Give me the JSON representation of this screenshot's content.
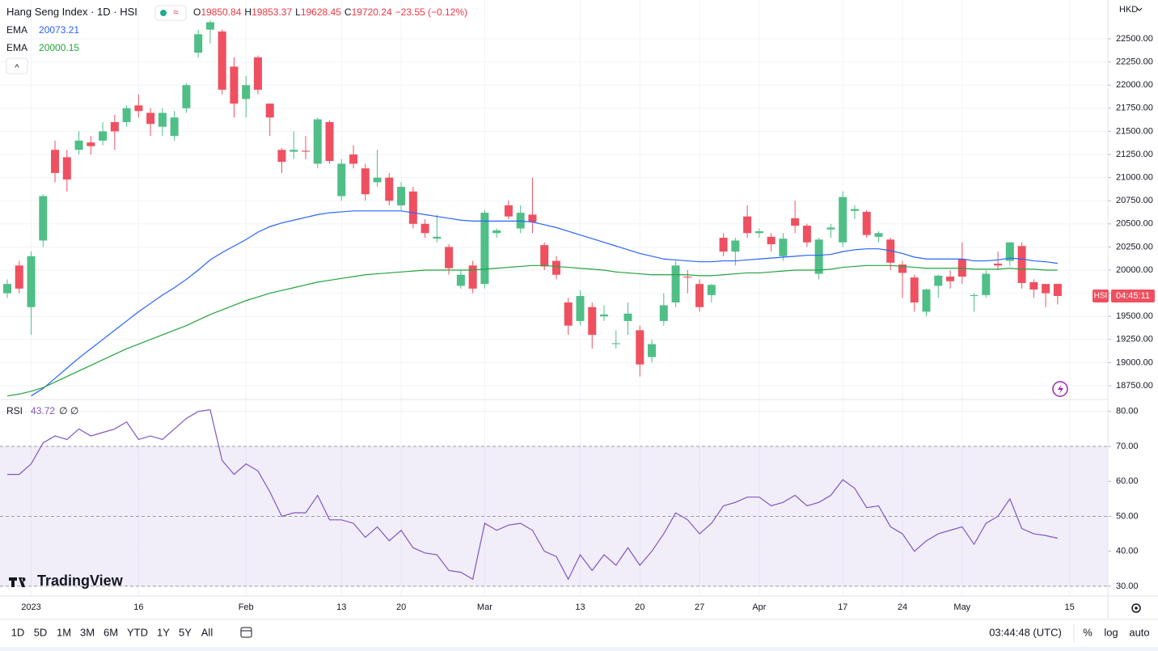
{
  "header": {
    "title": "Hang Seng Index · 1D · HSI",
    "o_label": "O",
    "h_label": "H",
    "l_label": "L",
    "c_label": "C",
    "change": "−23.55 (−0.12%)",
    "currency": "HKD",
    "symbol_badge": "HSI",
    "countdown": "04:45:11",
    "collapse": "^"
  },
  "logo": "TradingView",
  "toolbar": {
    "ranges": [
      "1D",
      "5D",
      "1M",
      "3M",
      "6M",
      "YTD",
      "1Y",
      "5Y",
      "All"
    ],
    "clock": "03:44:48 (UTC)",
    "scale_options": [
      "%",
      "log",
      "auto"
    ]
  },
  "chart_data": [
    {
      "type": "candlestick",
      "title": "Hang Seng Index",
      "categories": [
        null,
        null,
        "2023",
        null,
        null,
        null,
        null,
        null,
        null,
        null,
        null,
        "16",
        null,
        null,
        null,
        null,
        null,
        null,
        null,
        null,
        "Feb",
        null,
        null,
        null,
        null,
        null,
        null,
        null,
        "13",
        null,
        null,
        null,
        null,
        "20",
        null,
        null,
        null,
        null,
        null,
        null,
        "Mar",
        null,
        null,
        null,
        null,
        null,
        null,
        null,
        "13",
        null,
        null,
        null,
        null,
        "20",
        null,
        null,
        null,
        null,
        "27",
        null,
        null,
        null,
        null,
        "Apr",
        null,
        null,
        null,
        null,
        null,
        null,
        "17",
        null,
        null,
        null,
        null,
        "24",
        null,
        null,
        null,
        null,
        "May",
        null,
        null,
        null,
        null,
        null,
        null,
        null,
        null,
        "15"
      ],
      "open": [
        19750,
        20050,
        19600,
        20320,
        21300,
        21220,
        21300,
        21380,
        21400,
        21600,
        21600,
        21780,
        21700,
        21550,
        21450,
        21750,
        22350,
        22600,
        22580,
        22200,
        21850,
        22300,
        21800,
        21300,
        21280,
        21290,
        21150,
        21600,
        20800,
        21250,
        21100,
        20950,
        21000,
        20700,
        20850,
        20500,
        20340,
        20250,
        19830,
        20050,
        19850,
        20400,
        20700,
        20450,
        20600,
        20270,
        20100,
        19650,
        19450,
        19600,
        19500,
        19200,
        19450,
        19350,
        19060,
        19450,
        19650,
        19930,
        19850,
        19730,
        20350,
        20200,
        20580,
        20400,
        20360,
        20150,
        20560,
        20480,
        19960,
        20440,
        20300,
        20640,
        20630,
        20360,
        20330,
        20060,
        19920,
        19550,
        19830,
        19930,
        20120,
        19720,
        19730,
        20070,
        20100,
        20260,
        19870,
        19850,
        19850.84,
        null
      ],
      "high": [
        19900,
        20100,
        20200,
        20820,
        21400,
        21300,
        21500,
        21450,
        21600,
        21680,
        21780,
        21900,
        21750,
        21750,
        21720,
        22020,
        22600,
        22700,
        22600,
        22300,
        22100,
        22320,
        21800,
        21320,
        21500,
        21450,
        21650,
        21620,
        21200,
        21350,
        21150,
        21300,
        21050,
        20950,
        20900,
        20550,
        20600,
        20280,
        20000,
        20100,
        20650,
        20450,
        20750,
        20700,
        21000,
        20300,
        20150,
        19700,
        19780,
        19650,
        19620,
        19350,
        19650,
        19400,
        19250,
        19750,
        20100,
        20000,
        19900,
        19850,
        20400,
        20350,
        20700,
        20450,
        20400,
        20400,
        20750,
        20500,
        20350,
        20500,
        20850,
        20700,
        20650,
        20420,
        20350,
        20100,
        19950,
        19800,
        19950,
        20000,
        20300,
        19750,
        20000,
        20200,
        20300,
        20300,
        19900,
        19850,
        19853.37,
        null
      ],
      "low": [
        19700,
        19750,
        19300,
        20250,
        20950,
        20850,
        21250,
        21250,
        21350,
        21300,
        21550,
        21650,
        21450,
        21450,
        21400,
        21700,
        22300,
        22450,
        21900,
        21650,
        21650,
        21900,
        21450,
        21050,
        21200,
        21200,
        21100,
        21150,
        20750,
        21100,
        20750,
        20900,
        20700,
        20650,
        20450,
        20350,
        20300,
        19950,
        19800,
        19750,
        19800,
        20350,
        20550,
        20400,
        20400,
        20000,
        19900,
        19300,
        19400,
        19150,
        19450,
        19150,
        19300,
        18850,
        19000,
        19400,
        19600,
        19750,
        19550,
        19650,
        20150,
        20050,
        20350,
        20350,
        20200,
        20100,
        20400,
        20250,
        19900,
        20350,
        20250,
        20550,
        20350,
        20300,
        20000,
        19700,
        19550,
        19500,
        19700,
        19800,
        19850,
        19550,
        19700,
        20000,
        20050,
        19800,
        19700,
        19600,
        19628.45,
        null
      ],
      "close": [
        19850,
        19800,
        20150,
        20800,
        21050,
        20980,
        21400,
        21340,
        21500,
        21500,
        21750,
        21720,
        21580,
        21700,
        21650,
        22000,
        22550,
        22680,
        21950,
        21800,
        22000,
        21950,
        21650,
        21170,
        21300,
        21280,
        21630,
        21180,
        21150,
        21150,
        20820,
        21000,
        20750,
        20900,
        20500,
        20400,
        20360,
        20020,
        19950,
        19800,
        20620,
        20430,
        20580,
        20620,
        20520,
        20040,
        19950,
        19400,
        19720,
        19300,
        19520,
        19210,
        19530,
        18980,
        19200,
        19620,
        20050,
        19920,
        19600,
        19840,
        20200,
        20320,
        20400,
        20420,
        20280,
        20340,
        20480,
        20300,
        20330,
        20460,
        20790,
        20660,
        20380,
        20400,
        20080,
        19970,
        19650,
        19790,
        19940,
        19880,
        19930,
        19730,
        19960,
        20050,
        20300,
        19860,
        19790,
        19750,
        19720.24,
        null
      ],
      "up_color": "#4fbf87",
      "down_color": "#ef5060",
      "series": [
        {
          "name": "EMA",
          "color": "#2962ff",
          "values": [
            null,
            null,
            18640,
            18720,
            18830,
            18940,
            19050,
            19150,
            19250,
            19350,
            19450,
            19550,
            19640,
            19730,
            19810,
            19900,
            20000,
            20110,
            20190,
            20260,
            20330,
            20410,
            20470,
            20510,
            20540,
            20570,
            20600,
            20620,
            20630,
            20640,
            20640,
            20640,
            20640,
            20640,
            20620,
            20600,
            20580,
            20560,
            20540,
            20530,
            20530,
            20530,
            20530,
            20530,
            20520,
            20490,
            20460,
            20420,
            20380,
            20340,
            20300,
            20260,
            20220,
            20180,
            20150,
            20120,
            20110,
            20100,
            20090,
            20090,
            20100,
            20100,
            20110,
            20120,
            20130,
            20140,
            20150,
            20160,
            20160,
            20170,
            20200,
            20220,
            20230,
            20230,
            20210,
            20180,
            20140,
            20120,
            20120,
            20120,
            20120,
            20100,
            20100,
            20110,
            20130,
            20120,
            20100,
            20090,
            20073.21,
            null
          ]
        },
        {
          "name": "EMA",
          "color": "#22a33a",
          "values": [
            18640,
            18660,
            18690,
            18730,
            18790,
            18850,
            18910,
            18970,
            19030,
            19090,
            19150,
            19200,
            19250,
            19300,
            19350,
            19400,
            19460,
            19520,
            19570,
            19620,
            19670,
            19710,
            19750,
            19780,
            19810,
            19840,
            19870,
            19890,
            19910,
            19930,
            19950,
            19960,
            19970,
            19980,
            19990,
            20000,
            20000,
            20000,
            20000,
            20000,
            20010,
            20020,
            20030,
            20040,
            20050,
            20050,
            20040,
            20030,
            20020,
            20010,
            20000,
            19980,
            19970,
            19960,
            19950,
            19950,
            19950,
            19950,
            19940,
            19940,
            19950,
            19960,
            19970,
            19970,
            19980,
            19990,
            20000,
            20000,
            20000,
            20010,
            20030,
            20040,
            20050,
            20050,
            20050,
            20040,
            20030,
            20020,
            20020,
            20020,
            20020,
            20010,
            20010,
            20010,
            20020,
            20010,
            20010,
            20000,
            20000.15,
            null
          ]
        }
      ],
      "ylim": [
        18610,
        22920
      ],
      "yticks": [
        {
          "value": 18750,
          "label": "18750.00"
        },
        {
          "value": 19000,
          "label": "19000.00"
        },
        {
          "value": 19250,
          "label": "19250.00"
        },
        {
          "value": 19500,
          "label": "19500.00"
        },
        {
          "value": 19750,
          "label": "19750.00"
        },
        {
          "value": 20000,
          "label": "20000.00"
        },
        {
          "value": 20250,
          "label": "20250.00"
        },
        {
          "value": 20500,
          "label": "20500.00"
        },
        {
          "value": 20750,
          "label": "20750.00"
        },
        {
          "value": 21000,
          "label": "21000.00"
        },
        {
          "value": 21250,
          "label": "21250.00"
        },
        {
          "value": 21500,
          "label": "21500.00"
        },
        {
          "value": 21750,
          "label": "21750.00"
        },
        {
          "value": 22000,
          "label": "22000.00"
        },
        {
          "value": 22250,
          "label": "22250.00"
        },
        {
          "value": 22500,
          "label": "22500.00"
        }
      ],
      "grid": true
    },
    {
      "type": "line",
      "extra": "∅ ∅",
      "series": [
        {
          "name": "RSI",
          "color": "#7e57c2",
          "values": [
            62,
            62,
            65,
            71,
            73,
            72,
            75,
            73,
            74,
            75,
            77,
            72,
            73,
            72,
            75,
            78,
            80,
            80.5,
            66,
            62,
            65,
            63,
            57,
            50,
            51,
            51,
            56,
            49,
            49,
            48,
            44,
            47,
            43,
            46,
            41,
            39.5,
            39,
            34.5,
            34,
            32,
            48,
            46,
            47.5,
            48,
            46,
            40,
            38.5,
            32,
            39,
            34.5,
            39,
            36,
            41,
            36,
            40,
            45,
            51,
            49,
            45,
            48,
            53,
            54,
            55.5,
            55.5,
            53,
            54,
            56,
            53,
            54,
            56,
            60.5,
            58,
            52.5,
            53,
            47,
            45,
            40,
            43,
            45,
            46,
            47,
            42,
            48,
            50,
            55,
            46.5,
            45,
            44.5,
            43.72,
            null
          ]
        }
      ],
      "bands": [
        30,
        70
      ],
      "midline": 50,
      "band_color": "#7e57c2",
      "ylim": [
        27.2,
        83.2
      ],
      "yticks": [
        {
          "value": 30,
          "label": "30.00"
        },
        {
          "value": 40,
          "label": "40.00"
        },
        {
          "value": 50,
          "label": "50.00"
        },
        {
          "value": 60,
          "label": "60.00"
        },
        {
          "value": 70,
          "label": "70.00"
        },
        {
          "value": 80,
          "label": "80.00"
        }
      ],
      "grid": true
    }
  ]
}
